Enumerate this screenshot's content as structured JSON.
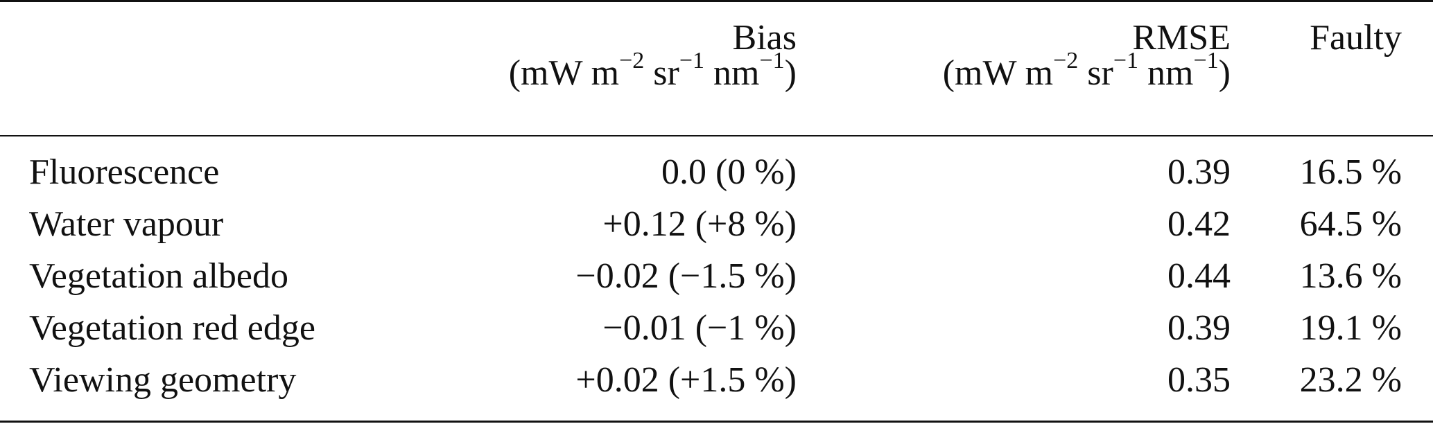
{
  "header": {
    "bias": {
      "name": "Bias",
      "unit_prefix": "(mW m",
      "exp1": "−2",
      "mid1": " sr",
      "exp2": "−1",
      "mid2": " nm",
      "exp3": "−1",
      "unit_suffix": ")"
    },
    "rmse": {
      "name": "RMSE",
      "unit_prefix": "(mW m",
      "exp1": "−2",
      "mid1": " sr",
      "exp2": "−1",
      "mid2": " nm",
      "exp3": "−1",
      "unit_suffix": ")"
    },
    "faulty": {
      "name": "Faulty"
    }
  },
  "rows": [
    {
      "label": "Fluorescence",
      "bias": "0.0 (0 %)",
      "rmse": "0.39",
      "faulty": "16.5 %"
    },
    {
      "label": "Water vapour",
      "bias": "+0.12 (+8 %)",
      "rmse": "0.42",
      "faulty": "64.5 %"
    },
    {
      "label": "Vegetation albedo",
      "bias": "−0.02 (−1.5 %)",
      "rmse": "0.44",
      "faulty": "13.6 %"
    },
    {
      "label": "Vegetation red edge",
      "bias": "−0.01 (−1 %)",
      "rmse": "0.39",
      "faulty": "19.1 %"
    },
    {
      "label": "Viewing geometry",
      "bias": "+0.02 (+1.5 %)",
      "rmse": "0.35",
      "faulty": "23.2 %"
    }
  ]
}
